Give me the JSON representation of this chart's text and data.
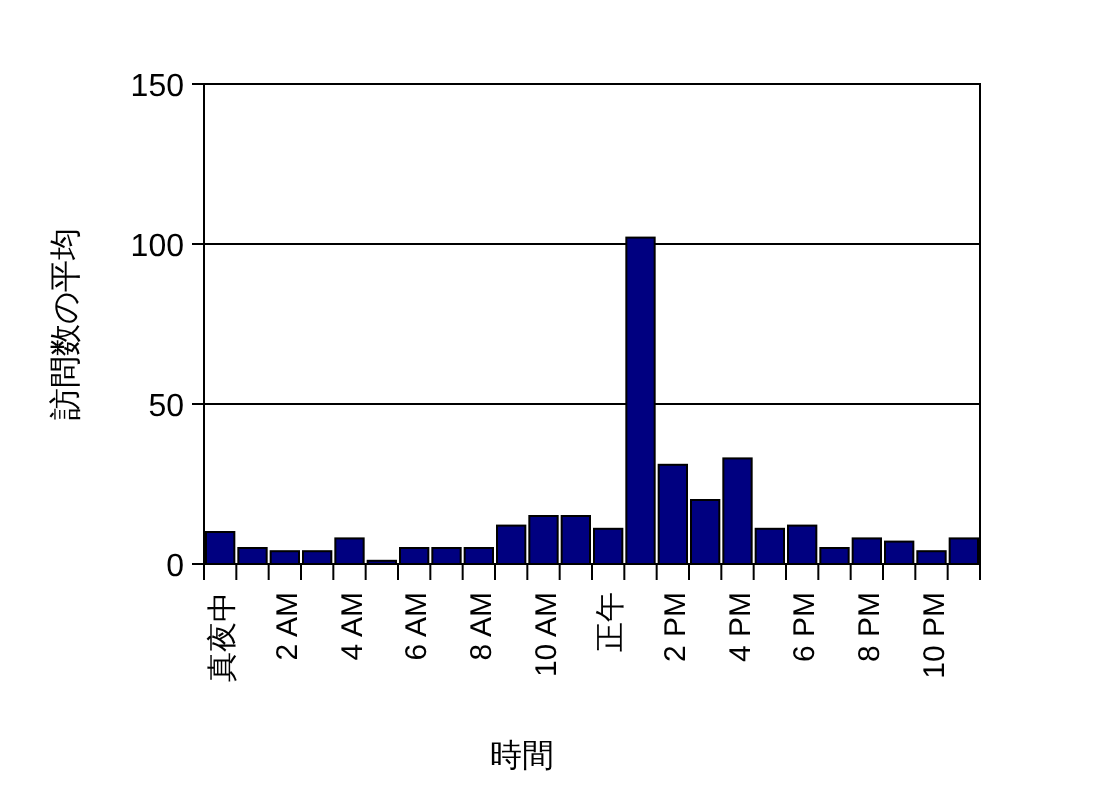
{
  "chart_data": {
    "type": "bar",
    "xlabel": "時間",
    "ylabel": "訪問数の平均",
    "categories": [
      "真夜中",
      null,
      "2 AM",
      null,
      "4 AM",
      null,
      "6 AM",
      null,
      "8 AM",
      null,
      "10 AM",
      null,
      "正午",
      null,
      "2 PM",
      null,
      "4 PM",
      null,
      "6 PM",
      null,
      "8 PM",
      null,
      "10 PM",
      null
    ],
    "values": [
      10,
      5,
      4,
      4,
      8,
      1,
      5,
      5,
      5,
      12,
      15,
      15,
      11,
      102,
      31,
      20,
      33,
      11,
      12,
      5,
      8,
      7,
      4,
      8
    ],
    "color": "#000080",
    "ylim": [
      0,
      150
    ],
    "yticks": [
      0,
      50,
      100,
      150
    ],
    "grid": "y"
  }
}
